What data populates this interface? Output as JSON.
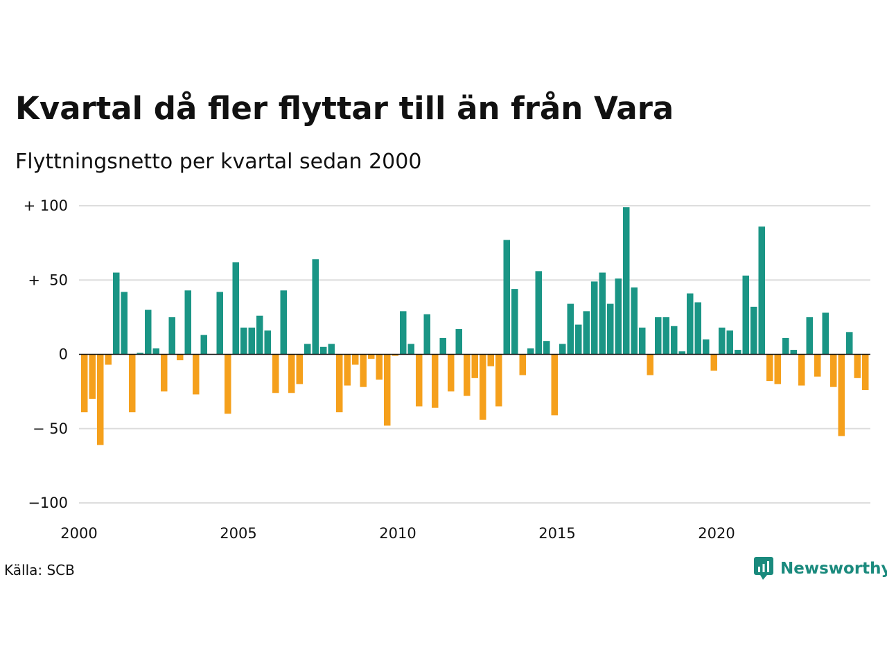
{
  "title": "Kvartal då fler flyttar till än från Vara",
  "subtitle": "Flyttningsnetto per kvartal sedan 2000",
  "source": "Källa: SCB",
  "brand": "Newsworthy",
  "brand_icon": "newsworthy-logo-icon",
  "colors": {
    "positive": "#1a9585",
    "negative": "#f5a01c",
    "grid": "#dddddd",
    "zero": "#111111"
  },
  "chart_data": {
    "type": "bar",
    "title": "Kvartal då fler flyttar till än från Vara",
    "subtitle": "Flyttningsnetto per kvartal sedan 2000",
    "xlabel": "",
    "ylabel": "",
    "ylim": [
      -100,
      100
    ],
    "yticks": [
      {
        "value": 100,
        "label": "+ 100"
      },
      {
        "value": 50,
        "label": "+  50"
      },
      {
        "value": 0,
        "label": "0"
      },
      {
        "value": -50,
        "label": "− 50"
      },
      {
        "value": -100,
        "label": "−100"
      }
    ],
    "xticks": [
      "2000",
      "2005",
      "2010",
      "2015",
      "2020"
    ],
    "grid": true,
    "start": "2000-Q1",
    "values": [
      -39,
      -30,
      -61,
      -7,
      55,
      42,
      -39,
      1,
      30,
      4,
      -25,
      25,
      -4,
      43,
      -27,
      13,
      0,
      42,
      -40,
      62,
      18,
      18,
      26,
      16,
      -26,
      43,
      -26,
      -20,
      7,
      64,
      5,
      7,
      -39,
      -21,
      -7,
      -22,
      -3,
      -17,
      -48,
      -1,
      29,
      7,
      -35,
      27,
      -36,
      11,
      -25,
      17,
      -28,
      -16,
      -44,
      -8,
      -35,
      77,
      44,
      -14,
      4,
      56,
      9,
      -41,
      7,
      34,
      20,
      29,
      49,
      55,
      34,
      51,
      99,
      45,
      18,
      -14,
      25,
      25,
      19,
      2,
      41,
      35,
      10,
      -11,
      18,
      16,
      3,
      53,
      32,
      86,
      -18,
      -20,
      11,
      3,
      -21,
      25,
      -15,
      28,
      -22,
      -55,
      15,
      -16,
      -24
    ]
  }
}
